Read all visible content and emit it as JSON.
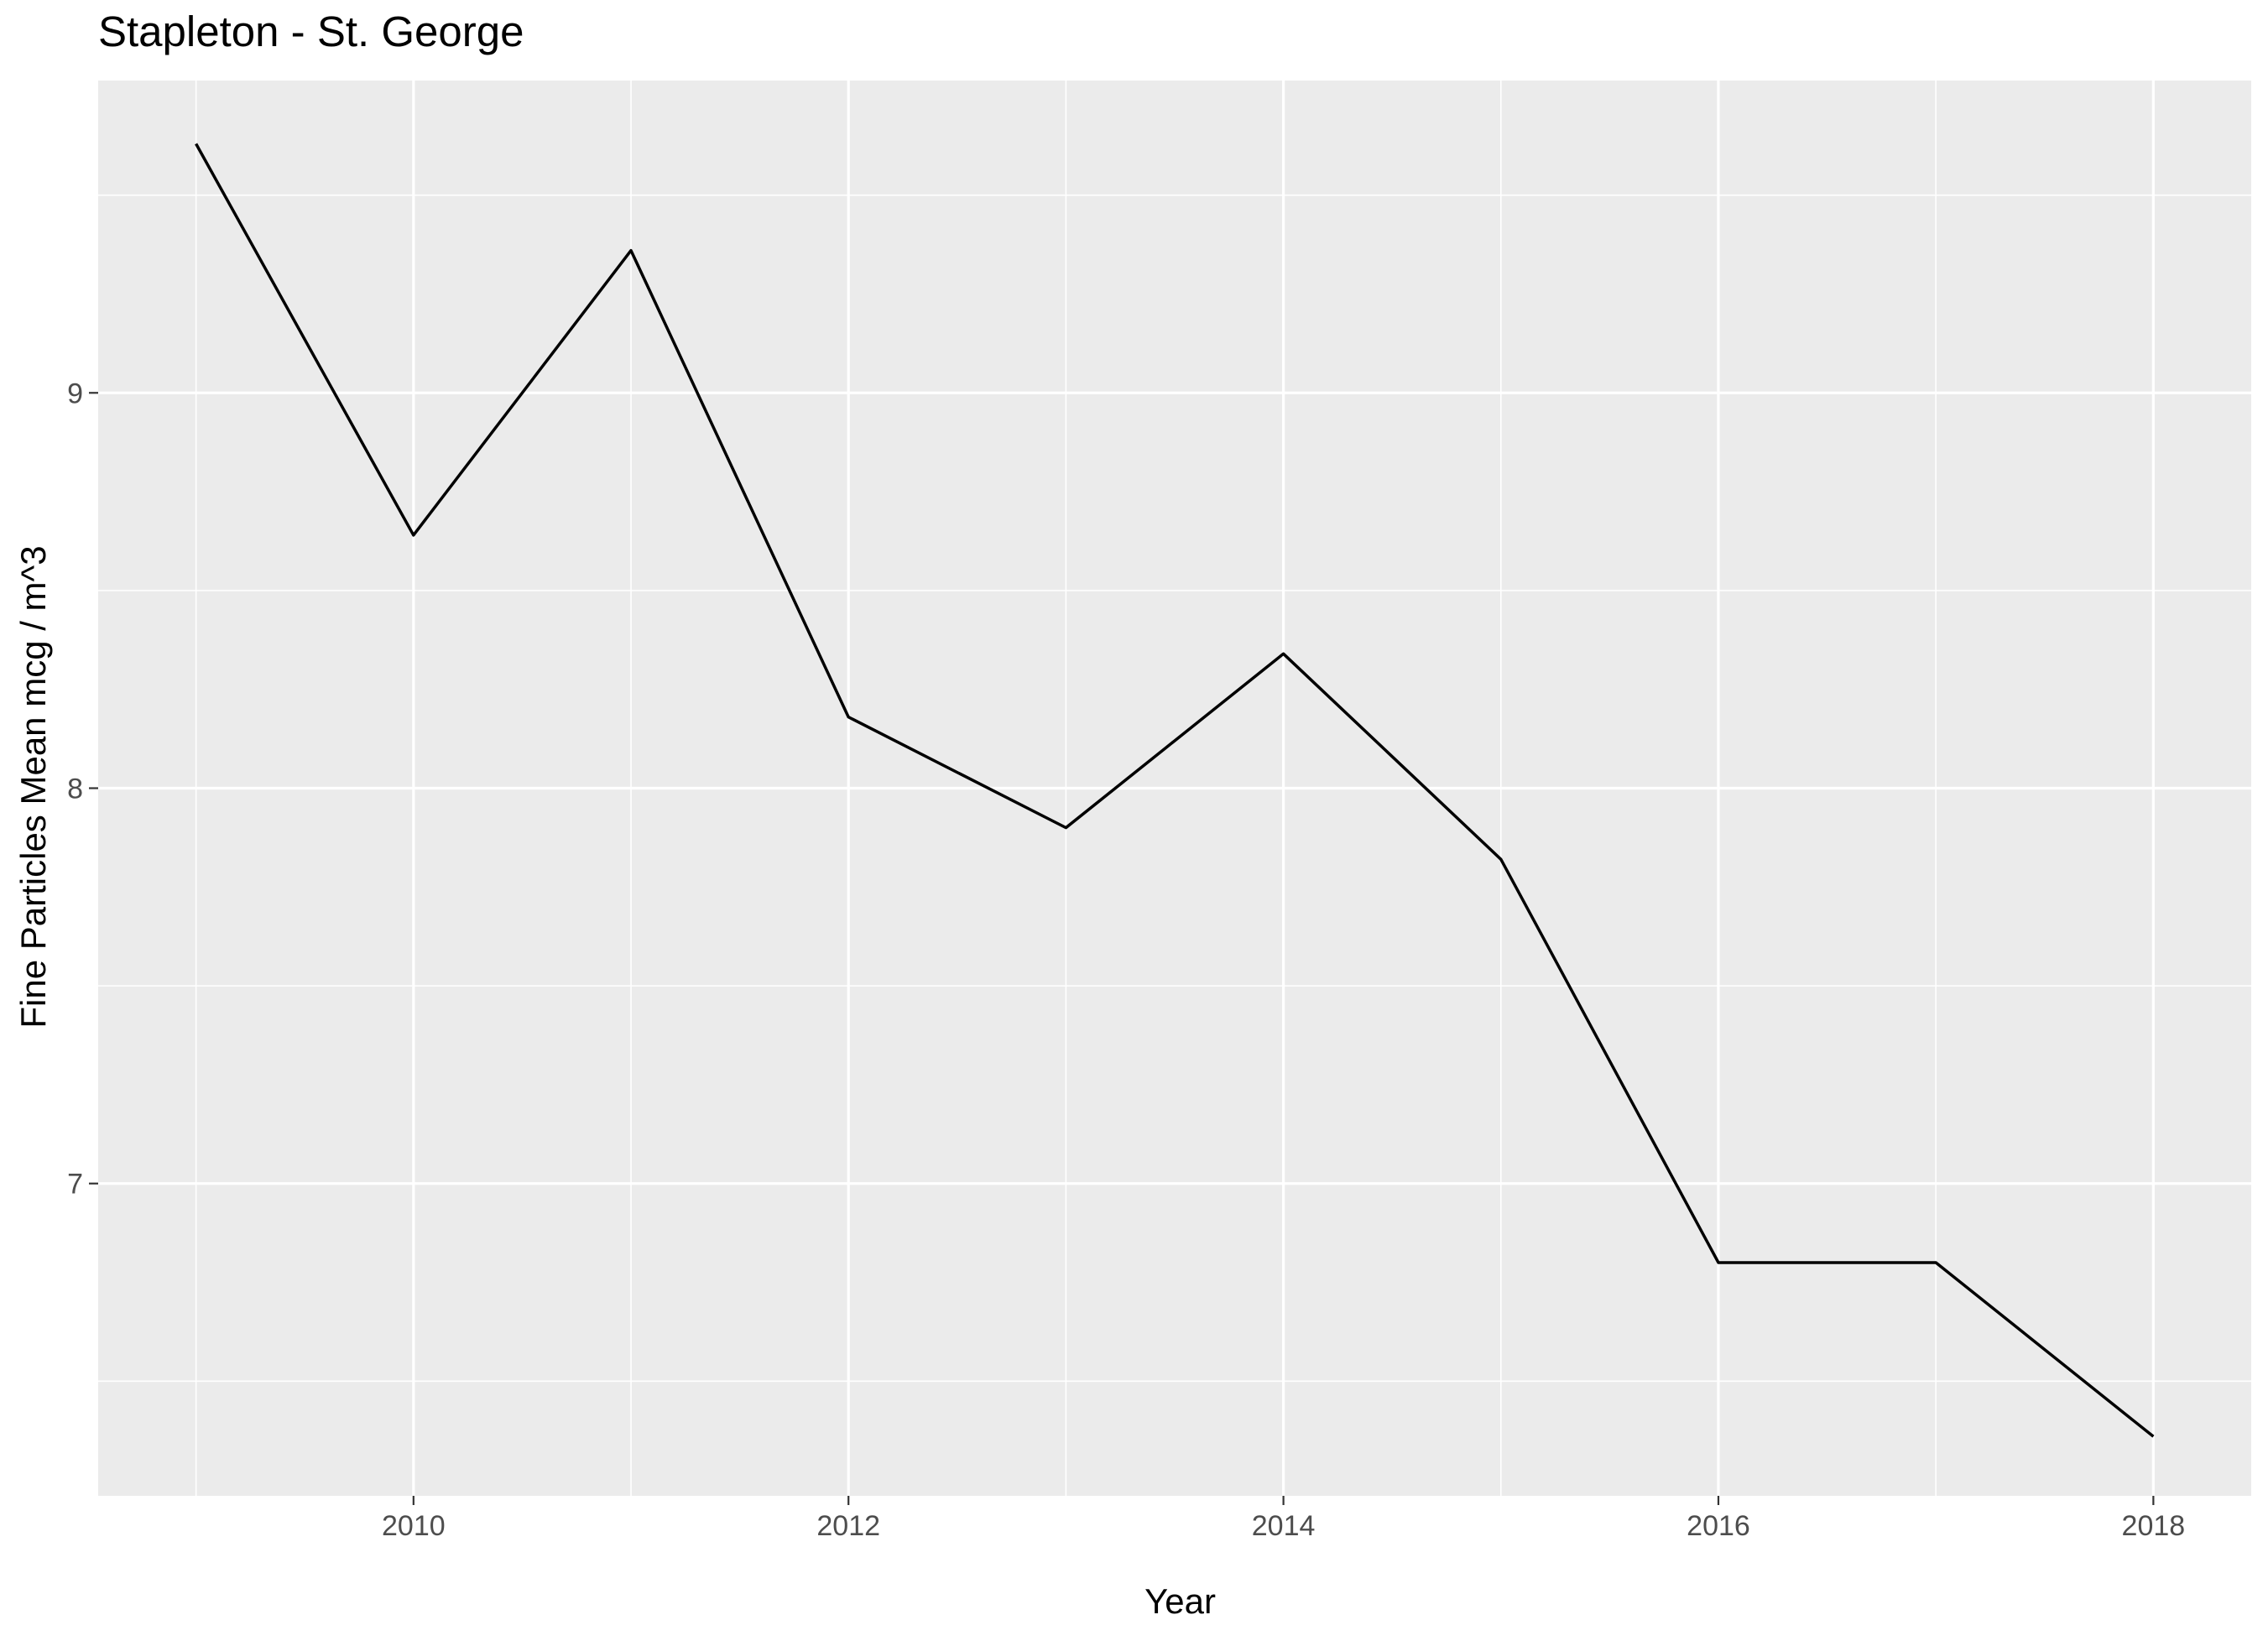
{
  "chart_data": {
    "type": "line",
    "title": "Stapleton - St. George",
    "xlabel": "Year",
    "ylabel": "Fine Particles Mean mcg / m^3",
    "x": [
      2009,
      2010,
      2011,
      2012,
      2013,
      2014,
      2015,
      2016,
      2017,
      2018
    ],
    "series": [
      {
        "values": [
          9.63,
          8.64,
          9.36,
          8.18,
          7.9,
          8.34,
          7.82,
          6.8,
          6.8,
          6.36
        ]
      }
    ],
    "xlim": [
      2008.55,
      2018.45
    ],
    "ylim": [
      6.21,
      9.79
    ],
    "x_ticks": [
      2010,
      2012,
      2014,
      2016,
      2018
    ],
    "y_ticks": [
      7,
      8,
      9
    ],
    "grid": true,
    "legend": "none",
    "colors": {
      "panel": "#ebebeb",
      "grid": "#ffffff",
      "line": "#000000",
      "tick_text": "#4d4d4d"
    }
  }
}
